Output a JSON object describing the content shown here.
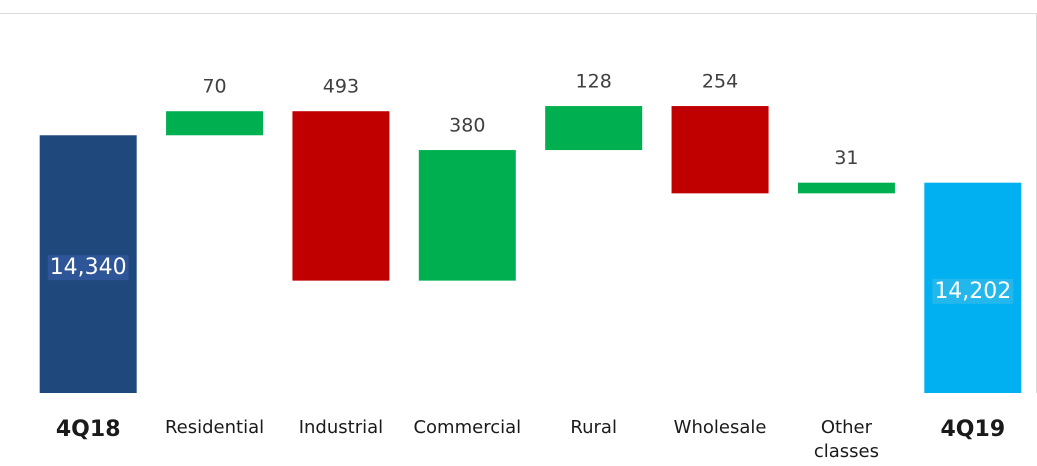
{
  "chart_data": {
    "type": "waterfall",
    "categories": [
      "4Q18",
      "Residential",
      "Industrial",
      "Commercial",
      "Rural",
      "Wholesale",
      "Other classes",
      "4Q19"
    ],
    "values": [
      14340,
      70,
      -493,
      380,
      128,
      -254,
      31,
      14202
    ],
    "value_labels": [
      "14,340",
      "70",
      "493",
      "380",
      "128",
      "254",
      "31",
      "14,202"
    ],
    "is_total": [
      true,
      false,
      false,
      false,
      false,
      false,
      false,
      true
    ],
    "colors": [
      "#1f497d",
      "#00b050",
      "#c00000",
      "#00b050",
      "#00b050",
      "#c00000",
      "#00b050",
      "#00b0f0"
    ],
    "ylim": [
      13590,
      14690
    ]
  }
}
